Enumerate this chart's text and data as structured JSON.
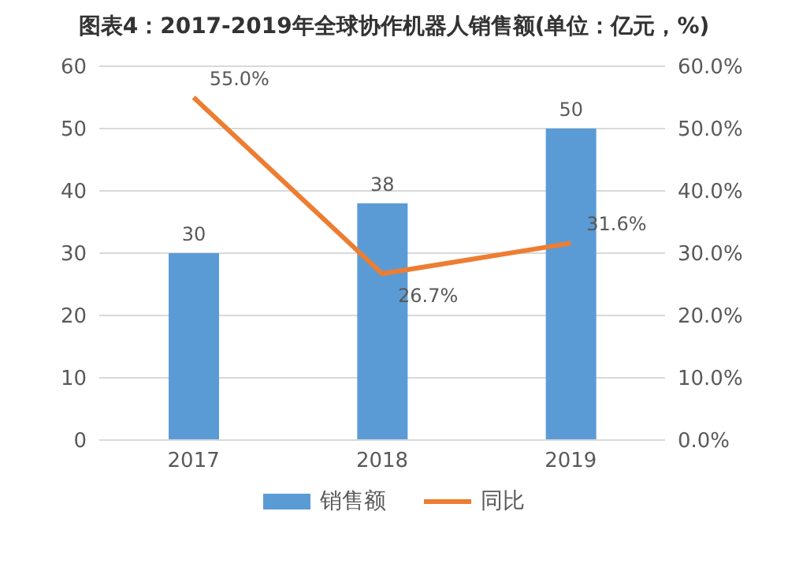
{
  "chart_data": {
    "type": "bar",
    "title": "图表4：2017-2019年全球协作机器人销售额(单位：亿元，%)",
    "categories": [
      "2017",
      "2018",
      "2019"
    ],
    "series": [
      {
        "name": "销售额",
        "color": "#5b9bd5",
        "values": [
          30,
          38,
          50
        ],
        "value_labels": [
          "30",
          "38",
          "50"
        ]
      },
      {
        "name": "同比",
        "type": "line",
        "axis": "y2",
        "color": "#ed7d31",
        "values": [
          55.0,
          26.7,
          31.6
        ],
        "value_labels": [
          "55.0%",
          "26.7%",
          "31.6%"
        ],
        "marker": "none"
      }
    ],
    "ylim": [
      0,
      60
    ],
    "yticks": [
      0,
      10,
      20,
      30,
      40,
      50,
      60
    ],
    "y2lim": [
      0,
      60
    ],
    "y2ticks": [
      {
        "value": 0,
        "label": "0.0%"
      },
      {
        "value": 10,
        "label": "10.0%"
      },
      {
        "value": 20,
        "label": "20.0%"
      },
      {
        "value": 30,
        "label": "30.0%"
      },
      {
        "value": 40,
        "label": "40.0%"
      },
      {
        "value": 50,
        "label": "50.0%"
      },
      {
        "value": 60,
        "label": "60.0%"
      }
    ],
    "grid": "y",
    "legend": "bottom"
  }
}
